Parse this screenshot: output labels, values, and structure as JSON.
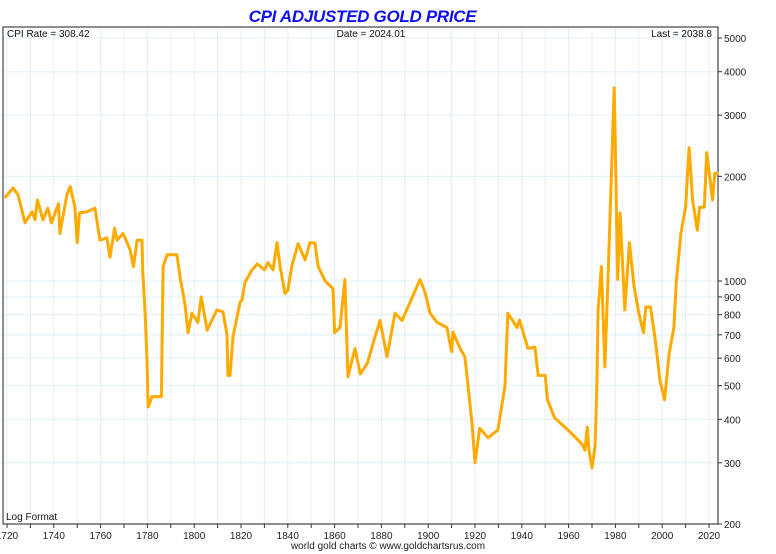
{
  "chart_data": {
    "type": "line",
    "title": "CPI ADJUSTED GOLD PRICE",
    "info": {
      "cpi_rate": "CPI Rate = 308.42",
      "date": "Date = 2024.01",
      "last": "Last = 2038.8",
      "scale_note": "Log Format"
    },
    "footer": "world gold charts © www.goldchartsrus.com",
    "xlim": [
      1719,
      2024
    ],
    "ylim": [
      200,
      5000
    ],
    "y_scale": "log",
    "grid": true,
    "x_ticks": [
      1720,
      1740,
      1760,
      1780,
      1800,
      1820,
      1840,
      1860,
      1880,
      1900,
      1920,
      1940,
      1960,
      1980,
      2000,
      2020
    ],
    "y_ticks": [
      200,
      300,
      400,
      500,
      600,
      700,
      800,
      900,
      1000,
      2000,
      3000,
      4000,
      5000
    ],
    "colors": {
      "line": "#ffaa00",
      "title": "#1010ee",
      "grid": "#e3eff7"
    },
    "series": [
      {
        "values": [
          [
            1719,
            1734
          ],
          [
            1722.6,
            1852
          ],
          [
            1724.7,
            1770
          ],
          [
            1727.7,
            1470
          ],
          [
            1730.7,
            1580
          ],
          [
            1732,
            1500
          ],
          [
            1733,
            1710
          ],
          [
            1735.4,
            1500
          ],
          [
            1737.5,
            1620
          ],
          [
            1739,
            1470
          ],
          [
            1742,
            1670
          ],
          [
            1742.6,
            1370
          ],
          [
            1745.6,
            1770
          ],
          [
            1747,
            1870
          ],
          [
            1749,
            1630
          ],
          [
            1750,
            1290
          ],
          [
            1751,
            1570
          ],
          [
            1754,
            1580
          ],
          [
            1757.6,
            1620
          ],
          [
            1759.7,
            1310
          ],
          [
            1762.7,
            1330
          ],
          [
            1764,
            1170
          ],
          [
            1766,
            1420
          ],
          [
            1767,
            1310
          ],
          [
            1769.6,
            1370
          ],
          [
            1772.6,
            1230
          ],
          [
            1774,
            1100
          ],
          [
            1775.6,
            1310
          ],
          [
            1777.7,
            1310
          ],
          [
            1778,
            1076
          ],
          [
            1779,
            808
          ],
          [
            1779.8,
            605
          ],
          [
            1780.3,
            434
          ],
          [
            1782,
            465
          ],
          [
            1786,
            465
          ],
          [
            1786.7,
            1100
          ],
          [
            1788.4,
            1190
          ],
          [
            1792.6,
            1190
          ],
          [
            1794,
            1020
          ],
          [
            1796,
            866
          ],
          [
            1797.4,
            710
          ],
          [
            1799,
            808
          ],
          [
            1801.6,
            760
          ],
          [
            1803,
            900
          ],
          [
            1805.5,
            722
          ],
          [
            1809.7,
            826
          ],
          [
            1812.3,
            815
          ],
          [
            1814,
            700
          ],
          [
            1814.4,
            535
          ],
          [
            1815.3,
            535
          ],
          [
            1816.6,
            690
          ],
          [
            1819.6,
            870
          ],
          [
            1820.4,
            880
          ],
          [
            1821.7,
            990
          ],
          [
            1824.7,
            1076
          ],
          [
            1827,
            1120
          ],
          [
            1830,
            1076
          ],
          [
            1831.5,
            1130
          ],
          [
            1833.7,
            1076
          ],
          [
            1835.4,
            1290
          ],
          [
            1836.7,
            1100
          ],
          [
            1838.8,
            920
          ],
          [
            1840,
            940
          ],
          [
            1841.8,
            1110
          ],
          [
            1844.4,
            1280
          ],
          [
            1847.4,
            1150
          ],
          [
            1849.5,
            1290
          ],
          [
            1851.6,
            1286
          ],
          [
            1853,
            1100
          ],
          [
            1856,
            1000
          ],
          [
            1859.3,
            950
          ],
          [
            1860,
            710
          ],
          [
            1862.3,
            735
          ],
          [
            1864.4,
            1010
          ],
          [
            1865.7,
            530
          ],
          [
            1868.7,
            640
          ],
          [
            1871,
            540
          ],
          [
            1874,
            580
          ],
          [
            1876.4,
            660
          ],
          [
            1879.4,
            770
          ],
          [
            1882.4,
            605
          ],
          [
            1885.8,
            808
          ],
          [
            1888.8,
            770
          ],
          [
            1892.2,
            866
          ],
          [
            1896.5,
            1010
          ],
          [
            1898.6,
            930
          ],
          [
            1900.8,
            808
          ],
          [
            1903.8,
            760
          ],
          [
            1908,
            735
          ],
          [
            1910,
            626
          ],
          [
            1910.6,
            713
          ],
          [
            1913.6,
            640
          ],
          [
            1915.7,
            605
          ],
          [
            1917,
            500
          ],
          [
            1918.7,
            390
          ],
          [
            1920,
            300
          ],
          [
            1922,
            377
          ],
          [
            1925.6,
            354
          ],
          [
            1929.8,
            373
          ],
          [
            1932.8,
            500
          ],
          [
            1934,
            808
          ],
          [
            1938,
            735
          ],
          [
            1939,
            772
          ],
          [
            1942.6,
            640
          ],
          [
            1945.6,
            645
          ],
          [
            1947,
            535
          ],
          [
            1950,
            535
          ],
          [
            1951,
            455
          ],
          [
            1954,
            404
          ],
          [
            1960.6,
            368
          ],
          [
            1965.7,
            340
          ],
          [
            1967,
            326
          ],
          [
            1968,
            380
          ],
          [
            1968.7,
            326
          ],
          [
            1970,
            290
          ],
          [
            1971.3,
            333
          ],
          [
            1972,
            476
          ],
          [
            1972.6,
            826
          ],
          [
            1974,
            1100
          ],
          [
            1975.5,
            566
          ],
          [
            1977,
            1100
          ],
          [
            1979.5,
            3590
          ],
          [
            1980,
            2380
          ],
          [
            1981,
            1010
          ],
          [
            1982,
            1570
          ],
          [
            1984,
            826
          ],
          [
            1986,
            1290
          ],
          [
            1988,
            962
          ],
          [
            1990,
            808
          ],
          [
            1992,
            710
          ],
          [
            1993,
            842
          ],
          [
            1995,
            842
          ],
          [
            1997,
            680
          ],
          [
            1999,
            519
          ],
          [
            2001,
            455
          ],
          [
            2003,
            620
          ],
          [
            2005,
            735
          ],
          [
            2006,
            986
          ],
          [
            2008,
            1370
          ],
          [
            2010,
            1630
          ],
          [
            2011.5,
            2420
          ],
          [
            2013,
            1710
          ],
          [
            2015,
            1400
          ],
          [
            2016,
            1630
          ],
          [
            2018,
            1630
          ],
          [
            2019,
            2340
          ],
          [
            2020.5,
            1952
          ],
          [
            2021.5,
            1710
          ],
          [
            2022.5,
            2040
          ],
          [
            2024,
            2039
          ]
        ]
      }
    ]
  }
}
